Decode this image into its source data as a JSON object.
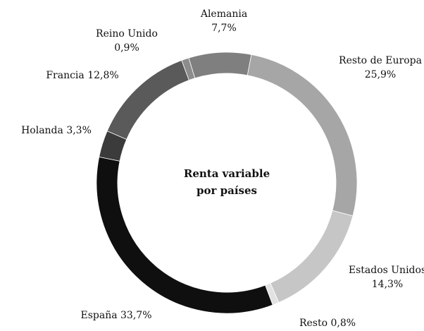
{
  "chart_data": {
    "type": "donut",
    "title": "Renta variable por países",
    "categories": [
      "Alemania",
      "Resto de Europa",
      "Estados Unidos",
      "Resto",
      "España",
      "Holanda",
      "Francia",
      "Reino Unido"
    ],
    "values": [
      7.7,
      25.9,
      14.3,
      0.8,
      33.7,
      3.3,
      12.8,
      0.9
    ],
    "value_labels": [
      "7,7%",
      "25,9%",
      "14,3%",
      "0,8%",
      "33,7%",
      "3,3%",
      "12,8%",
      "0,9%"
    ],
    "colors": [
      "#7f7f7f",
      "#a6a6a6",
      "#c6c6c6",
      "#e2e2e2",
      "#0f0f0f",
      "#3b3b3b",
      "#5a5a5a",
      "#8c8c8c"
    ]
  }
}
